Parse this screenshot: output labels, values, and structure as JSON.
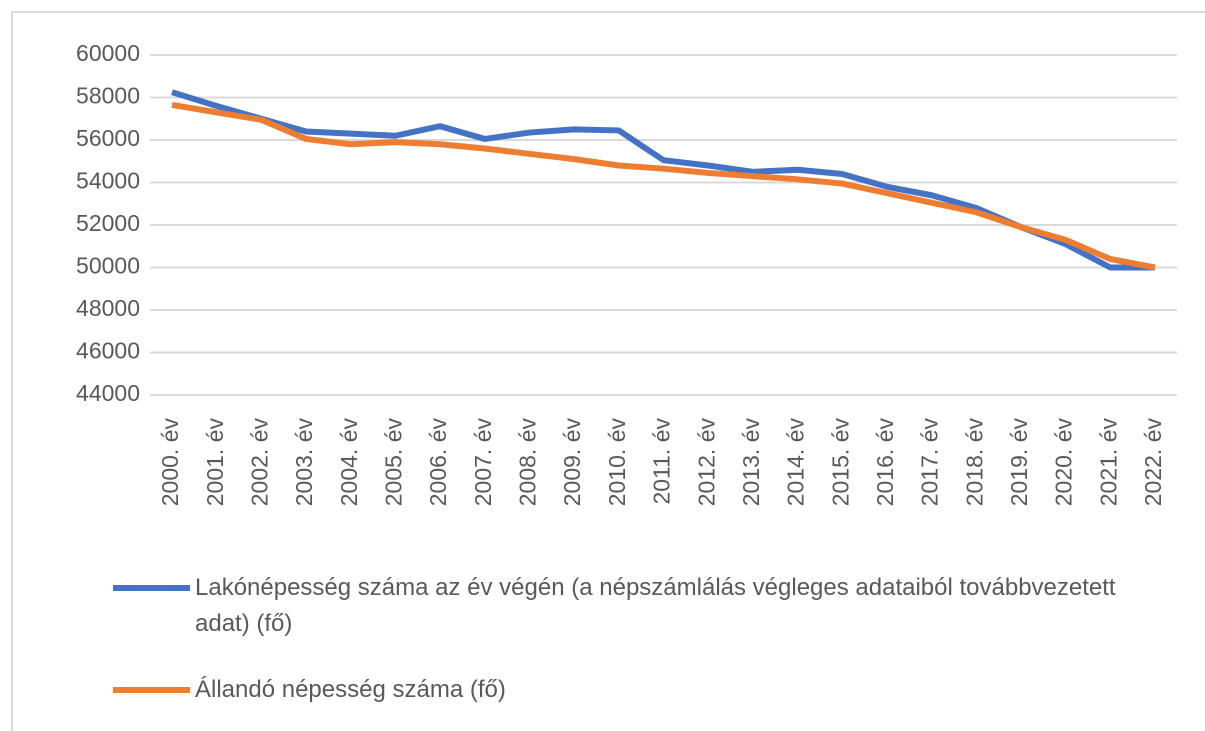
{
  "chart_data": {
    "type": "line",
    "categories": [
      "2000. év",
      "2001. év",
      "2002. év",
      "2003. év",
      "2004. év",
      "2005. év",
      "2006. év",
      "2007. év",
      "2008. év",
      "2009. év",
      "2010. év",
      "2011. év",
      "2012. év",
      "2013. év",
      "2014. év",
      "2015. év",
      "2016. év",
      "2017. év",
      "2018. év",
      "2019. év",
      "2020. év",
      "2021. év",
      "2022. év"
    ],
    "series": [
      {
        "name": "Lakónépesség száma az év végén (a népszámlálás végleges adataiból továbbvezetett adat) (fő)",
        "color": "#4472c4",
        "values": [
          58250,
          57600,
          57000,
          56400,
          56300,
          56200,
          56650,
          56050,
          56350,
          56500,
          56450,
          55050,
          54800,
          54500,
          54600,
          54400,
          53800,
          53400,
          52800,
          51900,
          51100,
          50000,
          50000
        ]
      },
      {
        "name": "Állandó népesség száma (fő)",
        "color": "#ed7d31",
        "values": [
          57650,
          57300,
          56950,
          56050,
          55800,
          55900,
          55800,
          55600,
          55350,
          55100,
          54800,
          54650,
          54450,
          54300,
          54150,
          53950,
          53500,
          53050,
          52600,
          51900,
          51300,
          50400,
          50000
        ]
      }
    ],
    "ylim": [
      44000,
      60000
    ],
    "yticks": [
      44000,
      46000,
      48000,
      50000,
      52000,
      54000,
      56000,
      58000,
      60000
    ],
    "grid": true
  }
}
